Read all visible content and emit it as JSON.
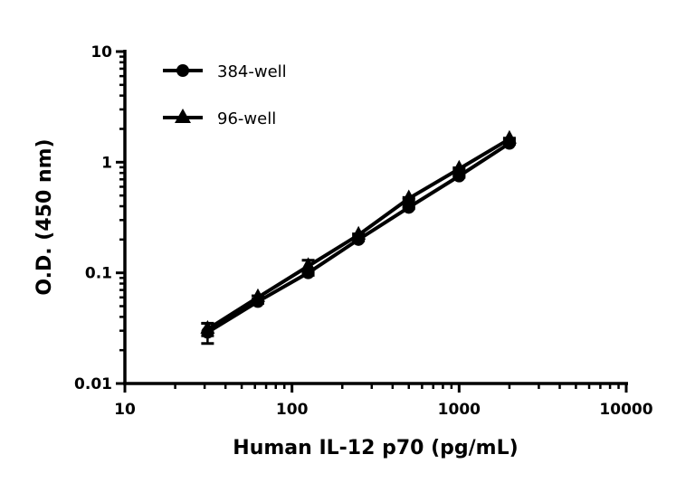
{
  "chart_data": {
    "type": "line",
    "title": "",
    "xlabel": "Human IL-12 p70 (pg/mL)",
    "ylabel": "O.D. (450 nm)",
    "xscale": "log",
    "yscale": "log",
    "xlim": [
      10,
      10000
    ],
    "ylim": [
      0.01,
      10
    ],
    "xticks": [
      10,
      100,
      1000,
      10000
    ],
    "xtick_labels": [
      "10",
      "100",
      "1000",
      "10000"
    ],
    "yticks": [
      0.01,
      0.1,
      1,
      10
    ],
    "ytick_labels": [
      "0.01",
      "0.1",
      "1",
      "10"
    ],
    "grid": false,
    "legend_position": "top-left",
    "x": [
      31.25,
      62.5,
      125,
      250,
      500,
      1000,
      2000
    ],
    "series": [
      {
        "name": "384-well",
        "marker": "circle",
        "color": "#000000",
        "values": [
          0.029,
          0.055,
          0.1,
          0.2,
          0.39,
          0.75,
          1.48
        ],
        "error": [
          0.006,
          0.002,
          0.005,
          0.005,
          0.01,
          0.02,
          0.03
        ]
      },
      {
        "name": "96-well",
        "marker": "triangle",
        "color": "#000000",
        "values": [
          0.031,
          0.06,
          0.115,
          0.22,
          0.47,
          0.87,
          1.62
        ],
        "error": [
          0.004,
          0.002,
          0.015,
          0.005,
          0.01,
          0.02,
          0.03
        ]
      }
    ]
  }
}
